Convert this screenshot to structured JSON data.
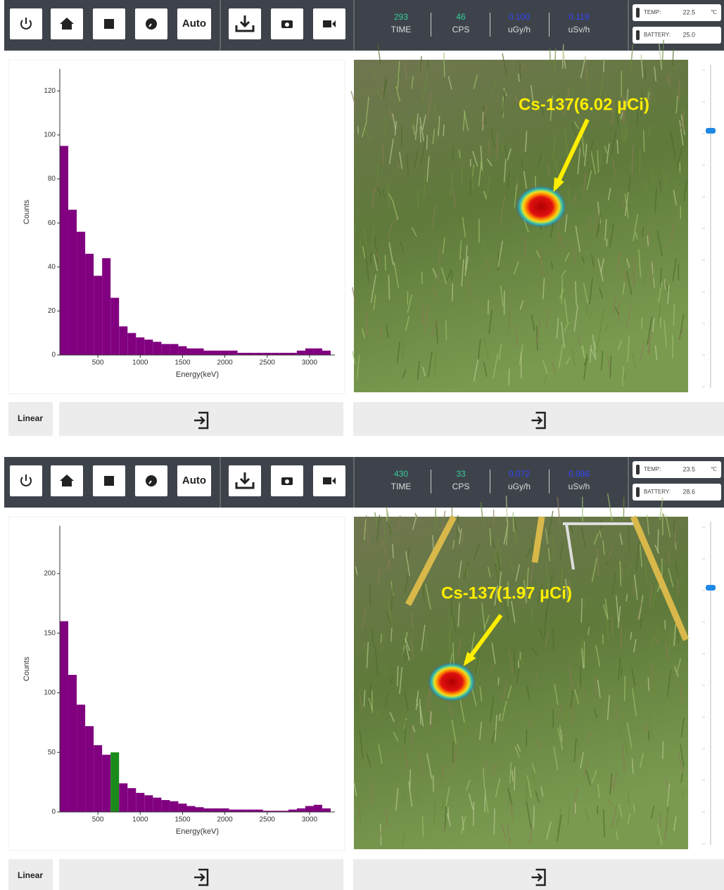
{
  "panels": [
    {
      "auto_button": "Auto",
      "readouts": [
        {
          "value": "293",
          "label": "TIME",
          "color": "#33cc99"
        },
        {
          "value": "46",
          "label": "CPS",
          "color": "#33cc99"
        },
        {
          "value": "0.100",
          "label": "uGy/h",
          "color": "#3344ff"
        },
        {
          "value": "0.119",
          "label": "uSv/h",
          "color": "#3344ff"
        }
      ],
      "temp": {
        "label": "TEMP:",
        "value": "22.5",
        "unit": "℃"
      },
      "battery": {
        "label": "BATTERY:",
        "value": "25.0"
      },
      "spectrum": {
        "type": "histogram",
        "color": "#800080",
        "bins": [
          50,
          150,
          250,
          350,
          450,
          550,
          650,
          750,
          850,
          950,
          1050,
          1150,
          1250,
          1350,
          1450,
          1550,
          1650,
          1750,
          1850,
          1950,
          2050,
          2150,
          2250,
          2350,
          2450,
          2550,
          2650,
          2750,
          2850,
          2950,
          3050,
          3150,
          3250
        ],
        "values": [
          95,
          66,
          56,
          46,
          36,
          44,
          26,
          13,
          10,
          8,
          7,
          6,
          5,
          5,
          4,
          3,
          3,
          2,
          2,
          2,
          2,
          1,
          1,
          1,
          1,
          1,
          1,
          1,
          2,
          3,
          3,
          2
        ],
        "xlim": [
          50,
          3300
        ],
        "ylim": [
          0,
          130
        ],
        "xticks": [
          500,
          1000,
          1500,
          2000,
          2500,
          3000
        ],
        "yticks": [
          0,
          20,
          40,
          60,
          80,
          100,
          120
        ],
        "xlabel": "Energy(keV)",
        "ylabel": "Counts"
      },
      "scale_button": "Linear",
      "image": {
        "annotation": "Cs-137(6.02 µCi)"
      }
    },
    {
      "auto_button": "Auto",
      "readouts": [
        {
          "value": "430",
          "label": "TIME",
          "color": "#33cc99"
        },
        {
          "value": "33",
          "label": "CPS",
          "color": "#33cc99"
        },
        {
          "value": "0.072",
          "label": "uGy/h",
          "color": "#3344ff"
        },
        {
          "value": "0.086",
          "label": "uSv/h",
          "color": "#3344ff"
        }
      ],
      "temp": {
        "label": "TEMP:",
        "value": "23.5",
        "unit": "℃"
      },
      "battery": {
        "label": "BATTERY:",
        "value": "28.6"
      },
      "spectrum": {
        "type": "histogram",
        "color": "#800080",
        "roi": [
          650,
          750
        ],
        "roi_color": "#1a8a1a",
        "bins": [
          50,
          150,
          250,
          350,
          450,
          550,
          650,
          750,
          850,
          950,
          1050,
          1150,
          1250,
          1350,
          1450,
          1550,
          1650,
          1750,
          1850,
          1950,
          2050,
          2150,
          2250,
          2350,
          2450,
          2550,
          2650,
          2750,
          2850,
          2950,
          3050,
          3150,
          3250
        ],
        "values": [
          160,
          115,
          90,
          72,
          56,
          48,
          50,
          24,
          20,
          16,
          14,
          12,
          10,
          9,
          7,
          5,
          4,
          3,
          3,
          3,
          2,
          2,
          2,
          2,
          1,
          1,
          1,
          2,
          3,
          5,
          6,
          3
        ],
        "xlim": [
          50,
          3300
        ],
        "ylim": [
          0,
          240
        ],
        "xticks": [
          500,
          1000,
          1500,
          2000,
          2500,
          3000
        ],
        "yticks": [
          0,
          50,
          100,
          150,
          200
        ],
        "xlabel": "Energy(keV)",
        "ylabel": "Counts"
      },
      "scale_button": "Linear",
      "image": {
        "annotation": "Cs-137(1.97 µCi)"
      }
    }
  ]
}
